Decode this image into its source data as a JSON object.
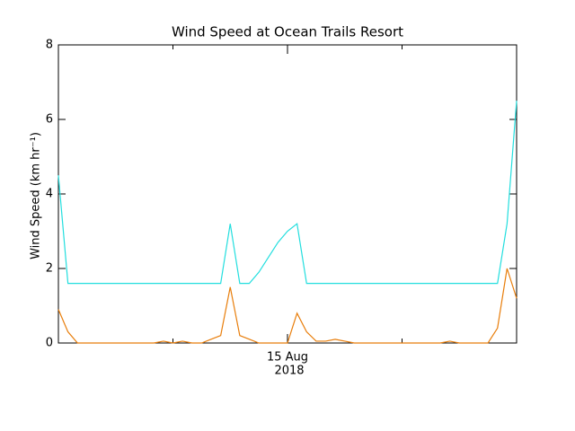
{
  "chart_data": {
    "type": "line",
    "title": "Wind Speed at Ocean Trails Resort",
    "y_label": "Wind Speed (km hr⁻¹)",
    "x_sublabel": "2018",
    "categories": [
      null,
      null,
      null,
      null,
      null,
      null,
      null,
      null,
      null,
      null,
      null,
      null,
      null,
      null,
      null,
      null,
      null,
      null,
      null,
      null,
      null,
      null,
      null,
      null,
      "15 Aug",
      null,
      null,
      null,
      null,
      null,
      null,
      null,
      null,
      null,
      null,
      null,
      null,
      null,
      null,
      null,
      null,
      null,
      null,
      null,
      null,
      null,
      null,
      null,
      null
    ],
    "series": [
      {
        "color": "#22dede",
        "values": [
          4.5,
          1.6,
          1.6,
          1.6,
          1.6,
          1.6,
          1.6,
          1.6,
          1.6,
          1.6,
          1.6,
          1.6,
          1.6,
          1.6,
          1.6,
          1.6,
          1.6,
          1.6,
          3.2,
          1.6,
          1.6,
          1.9,
          2.3,
          2.7,
          3.0,
          3.2,
          1.6,
          1.6,
          1.6,
          1.6,
          1.6,
          1.6,
          1.6,
          1.6,
          1.6,
          1.6,
          1.6,
          1.6,
          1.6,
          1.6,
          1.6,
          1.6,
          1.6,
          1.6,
          1.6,
          1.6,
          1.6,
          3.2,
          6.5
        ]
      },
      {
        "color": "#e87d0a",
        "values": [
          0.9,
          0.3,
          0,
          0,
          0,
          0,
          0,
          0,
          0,
          0,
          0,
          0.05,
          0,
          0.05,
          0,
          0,
          0.1,
          0.2,
          1.5,
          0.2,
          0.1,
          0,
          0,
          0,
          0,
          0.8,
          0.3,
          0.05,
          0.05,
          0.1,
          0.05,
          0,
          0,
          0,
          0,
          0,
          0,
          0,
          0,
          0,
          0,
          0.05,
          0,
          0,
          0,
          0,
          0.4,
          2.0,
          1.2
        ]
      }
    ],
    "ylim": [
      0,
      8
    ],
    "yticks": [
      0,
      2,
      4,
      6,
      8
    ]
  }
}
